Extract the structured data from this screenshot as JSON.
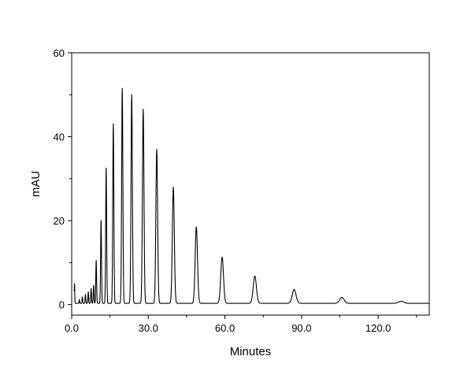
{
  "chart_data": {
    "type": "line",
    "title": "",
    "xlabel": "Minutes",
    "ylabel": "mAU",
    "xlim": [
      0,
      140
    ],
    "ylim": [
      -2.5,
      60
    ],
    "x_ticks": [
      0,
      30,
      60,
      90,
      120
    ],
    "x_tick_labels": [
      "0.0",
      "30.0",
      "60.0",
      "90.0",
      "120.0"
    ],
    "y_ticks": [
      0,
      20,
      40,
      60
    ],
    "y_tick_labels": [
      "0",
      "20",
      "40",
      "60"
    ],
    "grid": false,
    "legend": "none",
    "series": [
      {
        "color": "#000000",
        "baseline": 0.3,
        "peaks": [
          {
            "x": 1.1,
            "y": 5.0
          },
          {
            "x": 3.0,
            "y": 1.2
          },
          {
            "x": 4.2,
            "y": 1.8
          },
          {
            "x": 5.4,
            "y": 2.4
          },
          {
            "x": 6.5,
            "y": 3.0
          },
          {
            "x": 7.6,
            "y": 3.8
          },
          {
            "x": 8.6,
            "y": 4.5
          },
          {
            "x": 9.6,
            "y": 10.5
          },
          {
            "x": 11.5,
            "y": 20.0
          },
          {
            "x": 13.5,
            "y": 32.5
          },
          {
            "x": 16.3,
            "y": 43.0
          },
          {
            "x": 19.8,
            "y": 51.5
          },
          {
            "x": 23.5,
            "y": 50.0
          },
          {
            "x": 28.0,
            "y": 46.5
          },
          {
            "x": 33.3,
            "y": 37.0
          },
          {
            "x": 39.8,
            "y": 28.0
          },
          {
            "x": 48.8,
            "y": 18.5
          },
          {
            "x": 58.9,
            "y": 11.3
          },
          {
            "x": 71.7,
            "y": 6.8
          },
          {
            "x": 87.1,
            "y": 3.6
          },
          {
            "x": 105.8,
            "y": 1.7
          },
          {
            "x": 129.0,
            "y": 0.8
          }
        ]
      }
    ]
  }
}
